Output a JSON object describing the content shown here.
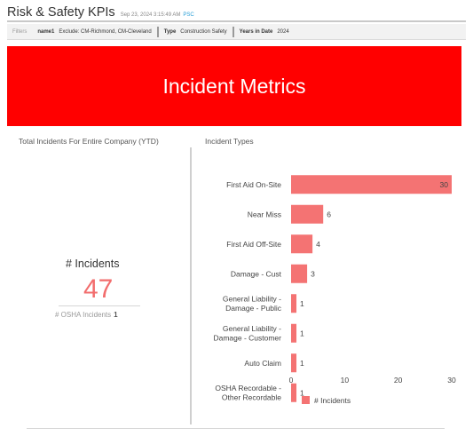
{
  "header": {
    "title": "Risk & Safety KPIs",
    "timestamp": "Sep 23, 2024 3:15:49 AM",
    "timezone": "PSC"
  },
  "filters": {
    "label": "Filters",
    "items": [
      {
        "key": "name1",
        "value": "Exclude: CM-Richmond, CM-Cleveland"
      },
      {
        "key": "Type",
        "value": "Construction Safety"
      },
      {
        "key": "Years in Date",
        "value": "2024"
      }
    ]
  },
  "banner": {
    "title": "Incident Metrics",
    "color": "#ff0000"
  },
  "kpi_panel": {
    "title": "Total Incidents For Entire Company (YTD)",
    "label": "# Incidents",
    "value": "47",
    "sub_label": "# OSHA Incidents",
    "sub_value": "1",
    "value_color": "#f26d6d"
  },
  "chart_panel": {
    "title": "Incident Types"
  },
  "chart_data": {
    "type": "bar",
    "orientation": "horizontal",
    "categories": [
      [
        "First Aid On-Site"
      ],
      [
        "Near Miss"
      ],
      [
        "First Aid Off-Site"
      ],
      [
        "Damage - Cust"
      ],
      [
        "General Liability -",
        "Damage - Public"
      ],
      [
        "General Liability -",
        "Damage - Customer"
      ],
      [
        "Auto Claim"
      ],
      [
        "OSHA Recordable -",
        "Other Recordable"
      ]
    ],
    "series": [
      {
        "name": "# Incidents",
        "values": [
          30,
          6,
          4,
          3,
          1,
          1,
          1,
          1
        ],
        "color": "#f47373"
      }
    ],
    "data_labels": [
      "30",
      "6",
      "4",
      "3",
      "1",
      "1",
      "1",
      "1"
    ],
    "xlim": [
      0,
      30
    ],
    "xticks": [
      "0",
      "10",
      "20",
      "30"
    ],
    "grid": false,
    "legend": "bottom"
  }
}
